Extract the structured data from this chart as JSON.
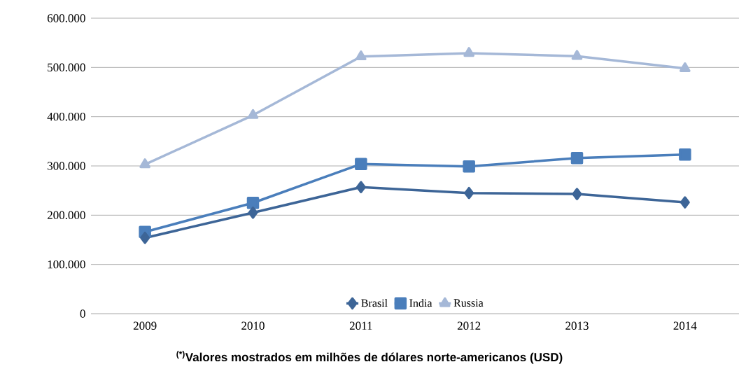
{
  "chart_data": {
    "type": "line",
    "categories": [
      "2009",
      "2010",
      "2011",
      "2012",
      "2013",
      "2014"
    ],
    "series": [
      {
        "name": "Brasil",
        "color": "#3d6597",
        "marker": "diamond",
        "values": [
          154000,
          205000,
          257000,
          245000,
          243000,
          226000
        ]
      },
      {
        "name": "India",
        "color": "#4a7ebb",
        "marker": "square",
        "values": [
          166000,
          225000,
          304000,
          299000,
          316000,
          323000
        ]
      },
      {
        "name": "Russia",
        "color": "#a5b8d7",
        "marker": "triangle",
        "values": [
          303000,
          403000,
          522000,
          529000,
          523000,
          498000
        ]
      }
    ],
    "ylim": [
      0,
      600000
    ],
    "yticks": [
      {
        "value": 0,
        "label": "0"
      },
      {
        "value": 100000,
        "label": "100.000"
      },
      {
        "value": 200000,
        "label": "200.000"
      },
      {
        "value": 300000,
        "label": "300.000"
      },
      {
        "value": 400000,
        "label": "400.000"
      },
      {
        "value": 500000,
        "label": "500.000"
      },
      {
        "value": 600000,
        "label": "600.000"
      }
    ],
    "grid": "y",
    "legend": "bottom",
    "line_style": "solid",
    "annotations": [
      "$^{(*)}$Valores mostrados em milhões de dólares norte-americanos (USD)"
    ]
  }
}
